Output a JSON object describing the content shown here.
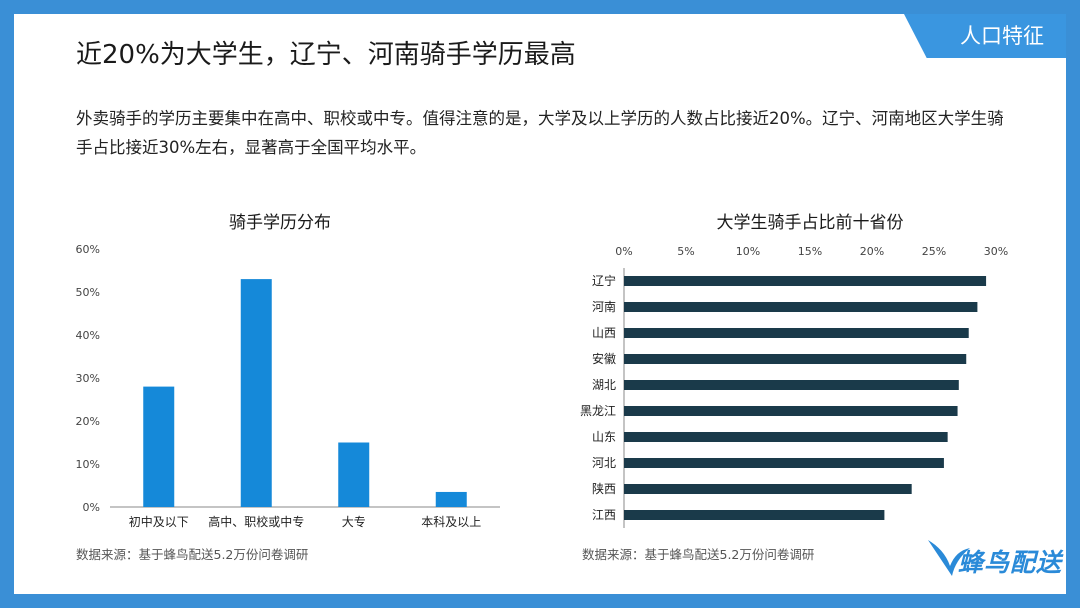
{
  "header": {
    "tag": "人口特征",
    "title": "近20%为大学生，辽宁、河南骑手学历最高",
    "description": "外卖骑手的学历主要集中在高中、职校或中专。值得注意的是，大学及以上学历的人数占比接近20%。辽宁、河南地区大学生骑手占比接近30%左右，显著高于全国平均水平。"
  },
  "source_left": "数据来源：基于蜂鸟配送5.2万份问卷调研",
  "source_right": "数据来源：基于蜂鸟配送5.2万份问卷调研",
  "logo": {
    "text": "蜂鸟配送"
  },
  "colors": {
    "bar_left": "#1589d9",
    "bar_right": "#1a3a4a",
    "accent": "#3a96e0"
  },
  "chart_data": [
    {
      "type": "bar",
      "title": "骑手学历分布",
      "categories": [
        "初中及以下",
        "高中、职校或中专",
        "大专",
        "本科及以上"
      ],
      "values": [
        28,
        53,
        15,
        3.5
      ],
      "ylim": [
        0,
        60
      ],
      "yticks": [
        "0%",
        "10%",
        "20%",
        "30%",
        "40%",
        "50%",
        "60%"
      ],
      "grid": false
    },
    {
      "type": "bar",
      "orientation": "horizontal",
      "title": "大学生骑手占比前十省份",
      "categories": [
        "辽宁",
        "河南",
        "山西",
        "安徽",
        "湖北",
        "黑龙江",
        "山东",
        "河北",
        "陕西",
        "江西"
      ],
      "values": [
        29.2,
        28.5,
        27.8,
        27.6,
        27.0,
        26.9,
        26.1,
        25.8,
        23.2,
        21.0
      ],
      "xlim": [
        0,
        30
      ],
      "xticks": [
        "0%",
        "5%",
        "10%",
        "15%",
        "20%",
        "25%",
        "30%"
      ],
      "grid": false
    }
  ]
}
